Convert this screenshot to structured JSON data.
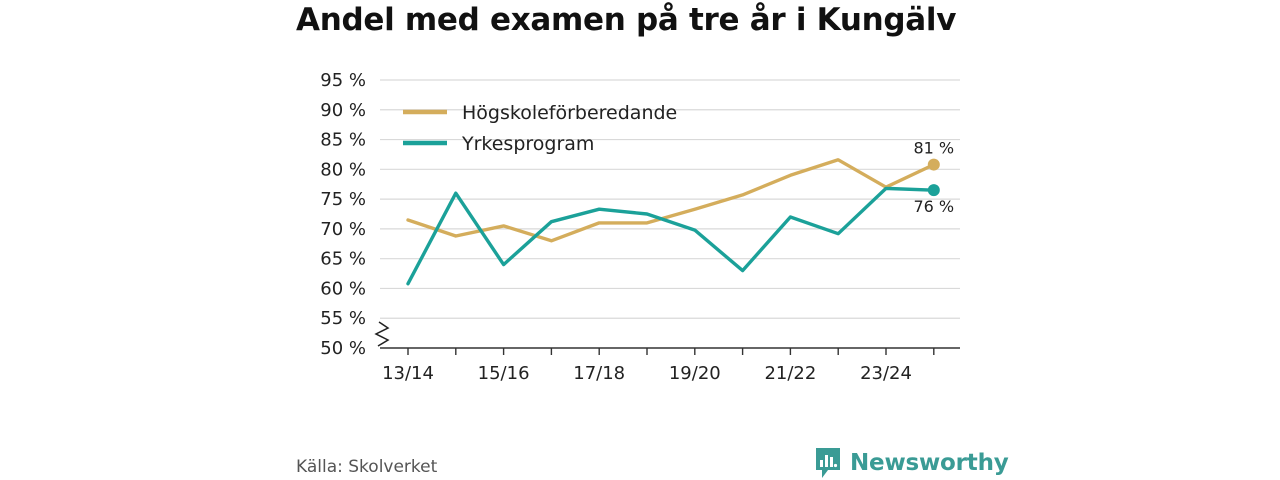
{
  "chart_data": {
    "type": "line",
    "title": "Andel med examen på tre år i Kungälv",
    "source": "Källa: Skolverket",
    "brand": "Newsworthy",
    "categories": [
      "13/14",
      "14/15",
      "15/16",
      "16/17",
      "17/18",
      "18/19",
      "19/20",
      "20/21",
      "21/22",
      "22/23",
      "23/24",
      "24/25"
    ],
    "x_tick_labels": [
      "13/14",
      "15/16",
      "17/18",
      "19/20",
      "21/22",
      "23/24"
    ],
    "y_ticks": [
      50,
      55,
      60,
      65,
      70,
      75,
      80,
      85,
      90,
      95
    ],
    "y_tick_labels": [
      "50 %",
      "55 %",
      "60 %",
      "65 %",
      "70 %",
      "75 %",
      "80 %",
      "85 %",
      "90 %",
      "95 %"
    ],
    "ylim": [
      50,
      95
    ],
    "y_axis_break": true,
    "grid": true,
    "legend_position": "top-left",
    "series": [
      {
        "name": "Högskoleförberedande",
        "color": "#d4ad5c",
        "values": [
          71.5,
          68.8,
          70.5,
          68.0,
          71.0,
          71.0,
          73.3,
          75.7,
          79.0,
          81.6,
          77.0,
          80.8
        ],
        "end_label": "81 %"
      },
      {
        "name": "Yrkesprogram",
        "color": "#1ba199",
        "values": [
          60.8,
          76.0,
          64.0,
          71.2,
          73.3,
          72.5,
          69.8,
          63.0,
          72.0,
          69.2,
          76.8,
          76.5
        ],
        "end_label": "76 %"
      }
    ]
  }
}
